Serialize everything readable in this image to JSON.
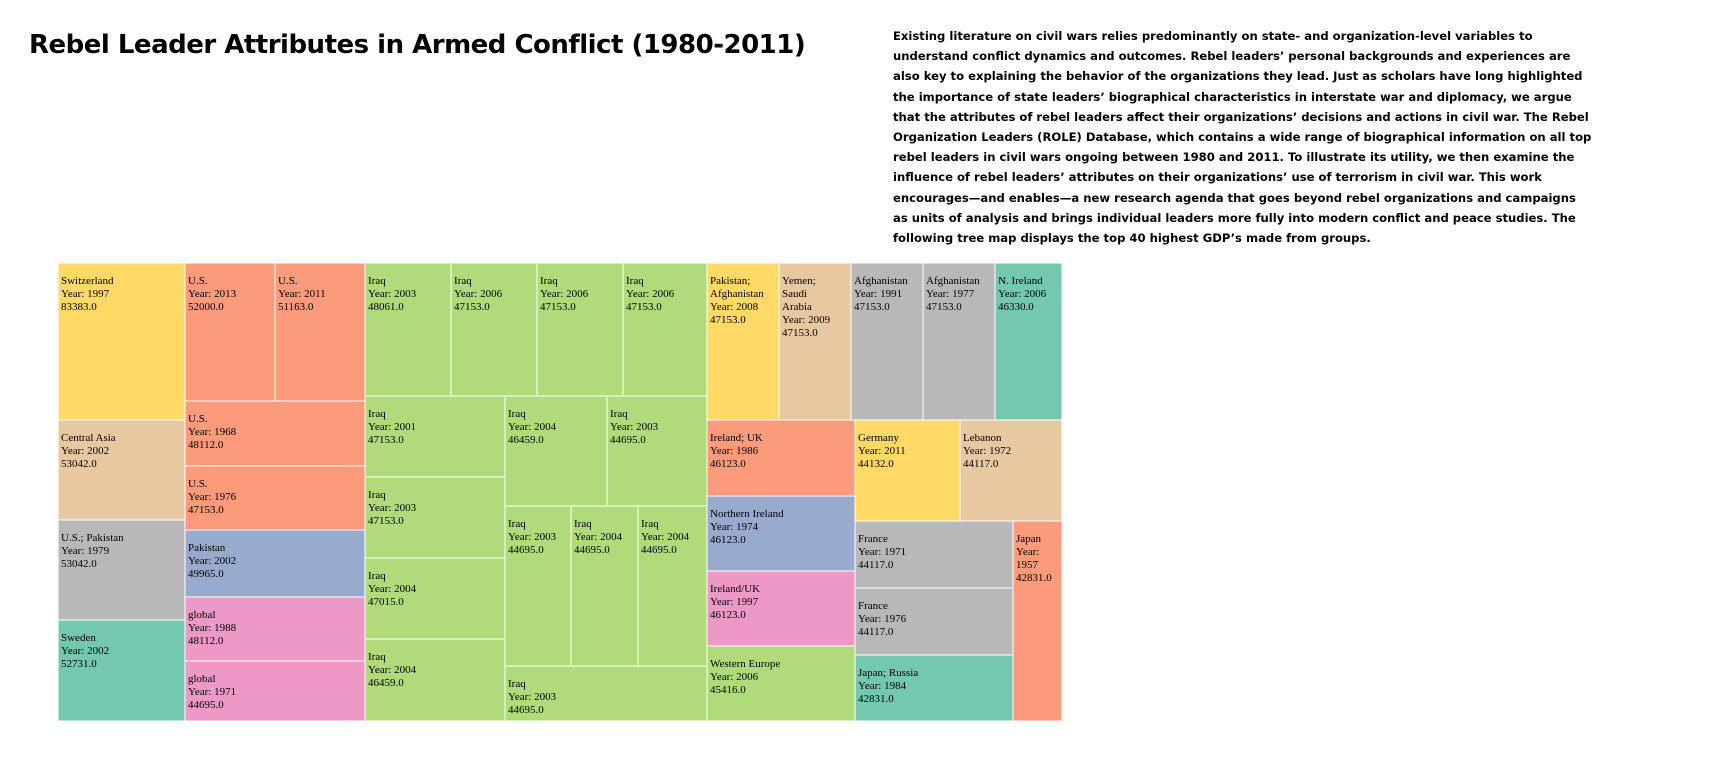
{
  "title": "Rebel Leader Attributes in Armed Conflict (1980-2011)",
  "description": "Existing literature on civil wars relies predominantly on state- and organization-level variables to understand conflict dynamics and outcomes. Rebel leaders’ personal backgrounds and experiences are also key to explaining the behavior of the organizations they lead. Just as scholars have long highlighted the importance of state leaders’ biographical characteristics in interstate war and diplomacy, we argue that the attributes of rebel leaders affect their organizations’ decisions and actions in civil war. The Rebel Organization Leaders (ROLE) Database, which contains a wide range of biographical information on all top rebel leaders in civil wars ongoing between 1980 and 2011. To illustrate its utility, we then examine the influence of rebel leaders’ attributes on their organizations’ use of terrorism in civil war. This work encourages—and enables—a new research agenda that goes beyond rebel organizations and campaigns as units of analysis and brings individual leaders more fully into modern conflict and peace studies. The following tree map displays the top 40 highest GDP’s made from groups.",
  "chart_data": {
    "type": "treemap",
    "year_prefix": "Year: ",
    "colors": {
      "yellow": "#ffd966",
      "tan": "#e8c8a0",
      "salmon": "#fc9a7c",
      "grey": "#b8b8b8",
      "teal": "#74c8b0",
      "blue": "#98aace",
      "pink": "#ee98c8",
      "green": "#afdb7a"
    },
    "items": [
      {
        "label": "Switzerland",
        "year": "1997",
        "value": "83383.0",
        "color": "yellow"
      },
      {
        "label": "Central Asia",
        "year": "2002",
        "value": "53042.0",
        "color": "tan"
      },
      {
        "label": "U.S.; Pakistan",
        "year": "1979",
        "value": "53042.0",
        "color": "grey"
      },
      {
        "label": "Sweden",
        "year": "2002",
        "value": "52731.0",
        "color": "teal"
      },
      {
        "label": "U.S.",
        "year": "2013",
        "value": "52000.0",
        "color": "salmon"
      },
      {
        "label": "U.S.",
        "year": "2011",
        "value": "51163.0",
        "color": "salmon"
      },
      {
        "label": "U.S.",
        "year": "1968",
        "value": "48112.0",
        "color": "salmon"
      },
      {
        "label": "U.S.",
        "year": "1976",
        "value": "47153.0",
        "color": "salmon"
      },
      {
        "label": "Pakistan",
        "year": "2002",
        "value": "49965.0",
        "color": "blue"
      },
      {
        "label": "global",
        "year": "1988",
        "value": "48112.0",
        "color": "pink"
      },
      {
        "label": "global",
        "year": "1971",
        "value": "44695.0",
        "color": "pink"
      },
      {
        "label": "Iraq",
        "year": "2003",
        "value": "48061.0",
        "color": "green"
      },
      {
        "label": "Iraq",
        "year": "2006",
        "value": "47153.0",
        "color": "green"
      },
      {
        "label": "Iraq",
        "year": "2006",
        "value": "47153.0",
        "color": "green"
      },
      {
        "label": "Iraq",
        "year": "2006",
        "value": "47153.0",
        "color": "green"
      },
      {
        "label": "Iraq",
        "year": "2001",
        "value": "47153.0",
        "color": "green"
      },
      {
        "label": "Iraq",
        "year": "2003",
        "value": "47153.0",
        "color": "green"
      },
      {
        "label": "Iraq",
        "year": "2004",
        "value": "47015.0",
        "color": "green"
      },
      {
        "label": "Iraq",
        "year": "2004",
        "value": "46459.0",
        "color": "green"
      },
      {
        "label": "Iraq",
        "year": "2004",
        "value": "46459.0",
        "color": "green"
      },
      {
        "label": "Iraq",
        "year": "2003",
        "value": "44695.0",
        "color": "green"
      },
      {
        "label": "Iraq",
        "year": "2003",
        "value": "44695.0",
        "color": "green"
      },
      {
        "label": "Iraq",
        "year": "2004",
        "value": "44695.0",
        "color": "green"
      },
      {
        "label": "Iraq",
        "year": "2004",
        "value": "44695.0",
        "color": "green"
      },
      {
        "label": "Iraq",
        "year": "2003",
        "value": "44695.0",
        "color": "green"
      },
      {
        "label": "Pakistan; Afghanistan",
        "year": "2008",
        "value": "47153.0",
        "color": "yellow"
      },
      {
        "label": "Yemen; Saudi Arabia",
        "year": "2009",
        "value": "47153.0",
        "color": "tan"
      },
      {
        "label": "Afghanistan",
        "year": "1991",
        "value": "47153.0",
        "color": "grey"
      },
      {
        "label": "Afghanistan",
        "year": "1977",
        "value": "47153.0",
        "color": "grey"
      },
      {
        "label": "N. Ireland",
        "year": "2006",
        "value": "46330.0",
        "color": "teal"
      },
      {
        "label": "Ireland; UK",
        "year": "1986",
        "value": "46123.0",
        "color": "salmon"
      },
      {
        "label": "Northern Ireland",
        "year": "1974",
        "value": "46123.0",
        "color": "blue"
      },
      {
        "label": "Ireland/UK",
        "year": "1997",
        "value": "46123.0",
        "color": "pink"
      },
      {
        "label": "Western Europe",
        "year": "2006",
        "value": "45416.0",
        "color": "green"
      },
      {
        "label": "Germany",
        "year": "2011",
        "value": "44132.0",
        "color": "yellow"
      },
      {
        "label": "Lebanon",
        "year": "1972",
        "value": "44117.0",
        "color": "tan"
      },
      {
        "label": "France",
        "year": "1971",
        "value": "44117.0",
        "color": "grey"
      },
      {
        "label": "France",
        "year": "1976",
        "value": "44117.0",
        "color": "grey"
      },
      {
        "label": "Japan; Russia",
        "year": "1984",
        "value": "42831.0",
        "color": "teal"
      },
      {
        "label": "Japan",
        "year": "1957",
        "value": "42831.0",
        "color": "salmon"
      }
    ]
  }
}
